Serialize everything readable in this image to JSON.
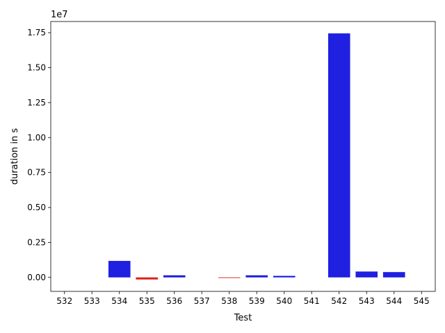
{
  "chart_data": {
    "type": "bar",
    "title": "",
    "xlabel": "Test",
    "ylabel": "duration in s",
    "y_scale_label": "1e7",
    "y_scale": 10000000,
    "categories": [
      "532",
      "533",
      "534",
      "535",
      "536",
      "537",
      "538",
      "539",
      "540",
      "541",
      "542",
      "543",
      "544",
      "545"
    ],
    "values": [
      0,
      0,
      1180000,
      -150000,
      150000,
      0,
      -45000,
      150000,
      110000,
      0,
      17450000,
      420000,
      380000,
      0
    ],
    "bar_colors": [
      "#2020e0",
      "#2020e0",
      "#2020e0",
      "#e02020",
      "#2020e0",
      "#2020e0",
      "#e02020",
      "#2020e0",
      "#2020e0",
      "#2020e0",
      "#2020e0",
      "#2020e0",
      "#2020e0",
      "#2020e0"
    ],
    "ylim": [
      -1000000,
      18300000
    ],
    "yticks": [
      0,
      2500000,
      5000000,
      7500000,
      10000000,
      12500000,
      15000000,
      17500000
    ],
    "ytick_labels": [
      "0.00",
      "0.25",
      "0.50",
      "0.75",
      "1.00",
      "1.25",
      "1.50",
      "1.75"
    ],
    "grid": false,
    "legend": "none"
  }
}
